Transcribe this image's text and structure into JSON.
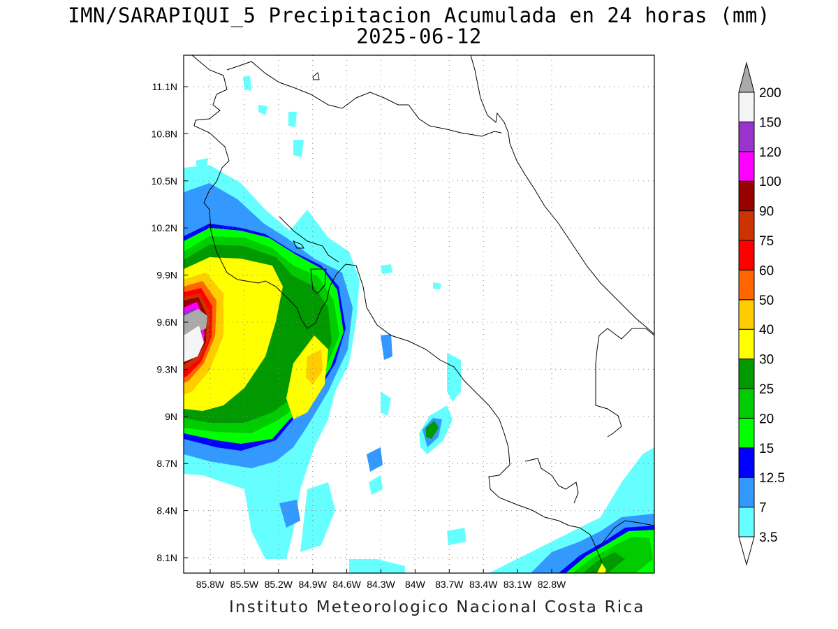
{
  "title_line1": "IMN/SARAPIQUI_5 Precipitacion Acumulada en 24 horas (mm)",
  "title_line2": "2025-06-12",
  "footer": "Instituto Meteorologico Nacional Costa Rica",
  "map": {
    "lon_range": [
      -86.0,
      -82.6
    ],
    "lat_range": [
      8.0,
      11.3
    ],
    "lon_ticks": [
      "85.8W",
      "85.5W",
      "85.2W",
      "84.9W",
      "84.6W",
      "84.3W",
      "84W",
      "83.7W",
      "83.4W",
      "83.1W",
      "82.8W"
    ],
    "lat_ticks": [
      "11.1N",
      "10.8N",
      "10.5N",
      "10.2N",
      "9.9N",
      "9.6N",
      "9.3N",
      "9N",
      "8.7N",
      "8.4N",
      "8.1N"
    ]
  },
  "colorbar": {
    "labels": [
      "3.5",
      "7",
      "12.5",
      "15",
      "20",
      "25",
      "30",
      "40",
      "50",
      "60",
      "75",
      "90",
      "100",
      "120",
      "150",
      "200"
    ],
    "colors": [
      "#66ffff",
      "#3399ff",
      "#0000ff",
      "#00ff00",
      "#00cc00",
      "#009900",
      "#ffff00",
      "#ffcc00",
      "#ff6600",
      "#ff0000",
      "#cc3300",
      "#990000",
      "#ff00ff",
      "#9933cc",
      "#f5f5f5",
      "#aaaaaa"
    ]
  }
}
